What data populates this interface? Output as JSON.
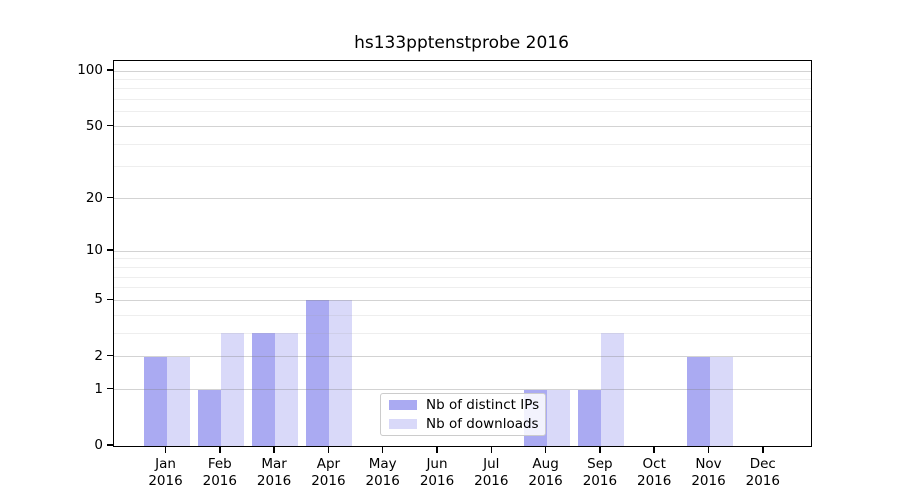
{
  "title": "hs133pptenstprobe 2016",
  "chart_data": {
    "type": "bar",
    "title": "hs133pptenstprobe 2016",
    "categories": [
      "Jan 2016",
      "Feb 2016",
      "Mar 2016",
      "Apr 2016",
      "May 2016",
      "Jun 2016",
      "Jul 2016",
      "Aug 2016",
      "Sep 2016",
      "Oct 2016",
      "Nov 2016",
      "Dec 2016"
    ],
    "series": [
      {
        "key": "distinct-ips",
        "name": "Nb of distinct IPs",
        "color": "#aaaaf2",
        "values": [
          2,
          1,
          3,
          5,
          0,
          0,
          0,
          1,
          1,
          0,
          2,
          0
        ]
      },
      {
        "key": "downloads",
        "name": "Nb of downloads",
        "color": "#d9d9f9",
        "values": [
          2,
          3,
          3,
          5,
          0,
          0,
          0,
          1,
          3,
          0,
          2,
          0
        ]
      }
    ],
    "xlabel": "",
    "ylabel": "",
    "yscale": "log10(1+y)",
    "ylim": [
      0,
      113
    ],
    "y_major_ticks": [
      0,
      1,
      2,
      5,
      10,
      20,
      50,
      100
    ],
    "y_minor_gridlines": [
      3,
      4,
      6,
      7,
      8,
      9,
      30,
      40,
      60,
      70,
      80,
      90
    ],
    "grid": true,
    "legend_position": "lower-center-inside"
  },
  "legend": {
    "items": [
      {
        "label": "Nb of distinct IPs",
        "color": "#aaaaf2"
      },
      {
        "label": "Nb of downloads",
        "color": "#d9d9f9"
      }
    ]
  },
  "colors": {
    "background": "#ffffff",
    "axis": "#000000",
    "grid_major": "#d6d6d6",
    "grid_minor": "#ebebeb",
    "bar_distinct_ips": "#aaaaf2",
    "bar_downloads": "#d9d9f9"
  }
}
